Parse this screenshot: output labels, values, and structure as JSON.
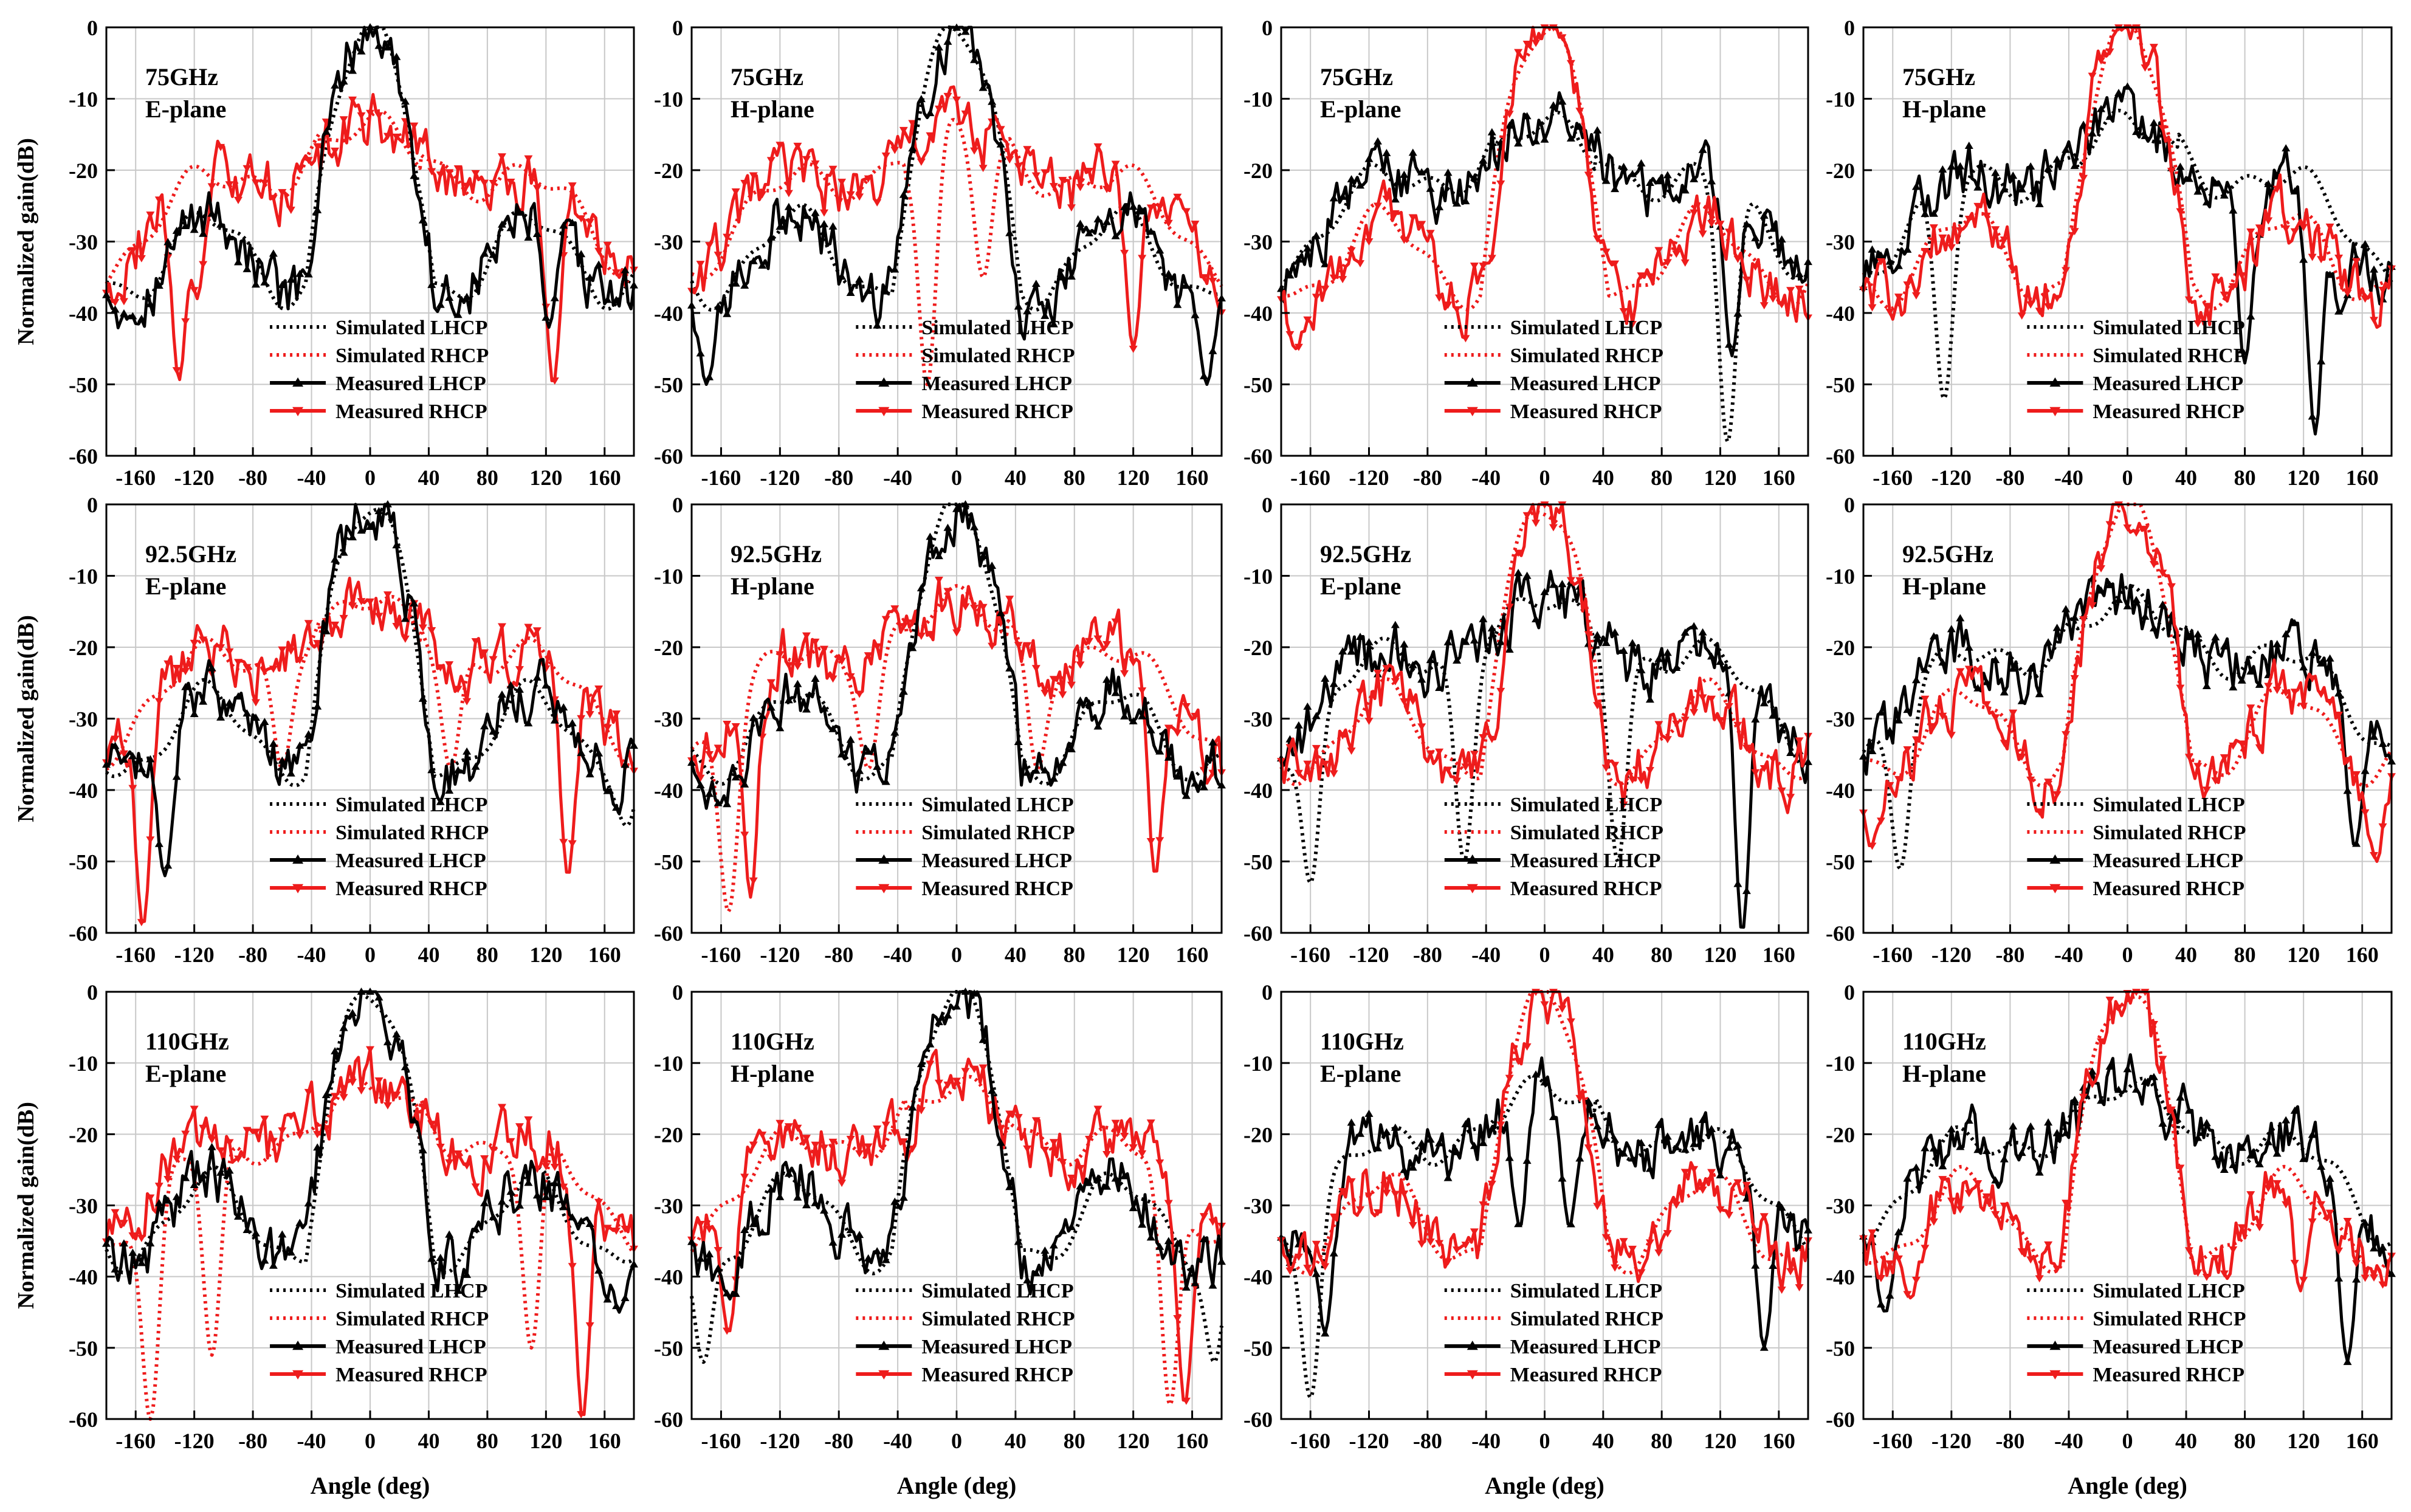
{
  "figure": {
    "ylabel": "Normalized gain(dB)",
    "xlabel": "Angle (deg)"
  },
  "legend_labels": [
    "Simulated  LHCP",
    "Simulated  RHCP",
    "Measured  LHCP",
    "Measured  RHCP"
  ],
  "colors": {
    "lhcp": "#000000",
    "rhcp": "#ee1c1c",
    "grid": "#c8c8c8",
    "axis": "#000000"
  },
  "chart_data": [
    {
      "type": "line",
      "freq": "75GHz",
      "plane": "E-plane",
      "main": "lhcp",
      "xlim": [
        -180,
        180
      ],
      "ylim": [
        -60,
        0
      ],
      "xticks": [
        -160,
        -120,
        -80,
        -40,
        0,
        40,
        80,
        120,
        160
      ],
      "yticks": [
        0,
        -10,
        -20,
        -30,
        -40,
        -50,
        -60
      ],
      "side_level": -15,
      "nulls": [
        {
          "a": -130,
          "d": -50,
          "s": "rhcp"
        },
        {
          "a": -118,
          "d": -38,
          "s": "rhcp"
        },
        {
          "a": 122,
          "d": -42,
          "s": "lhcp"
        },
        {
          "a": 125,
          "d": -50,
          "s": "rhcp"
        }
      ],
      "series": [
        {
          "name": "Simulated  LHCP"
        },
        {
          "name": "Simulated  RHCP"
        },
        {
          "name": "Measured  LHCP"
        },
        {
          "name": "Measured  RHCP"
        }
      ]
    },
    {
      "type": "line",
      "freq": "75GHz",
      "plane": "H-plane",
      "main": "lhcp",
      "xlim": [
        -180,
        180
      ],
      "ylim": [
        -60,
        0
      ],
      "xticks": [
        -160,
        -120,
        -80,
        -40,
        0,
        40,
        80,
        120,
        160
      ],
      "yticks": [
        0,
        -10,
        -20,
        -30,
        -40,
        -50,
        -60
      ],
      "side_level": -17,
      "nulls": [
        {
          "a": -170,
          "d": -50,
          "s": "lhcp"
        },
        {
          "a": -20,
          "d": -50,
          "s": "rhcp_sim"
        },
        {
          "a": 18,
          "d": -35,
          "s": "rhcp_sim"
        },
        {
          "a": 120,
          "d": -45,
          "s": "rhcp"
        },
        {
          "a": 170,
          "d": -50,
          "s": "lhcp"
        }
      ],
      "series": [
        {
          "name": "Simulated  LHCP"
        },
        {
          "name": "Simulated  RHCP"
        },
        {
          "name": "Measured  LHCP"
        },
        {
          "name": "Measured  RHCP"
        }
      ]
    },
    {
      "type": "line",
      "freq": "75GHz",
      "plane": "E-plane",
      "main": "rhcp",
      "xlim": [
        -180,
        180
      ],
      "ylim": [
        -60,
        0
      ],
      "xticks": [
        -160,
        -120,
        -80,
        -40,
        0,
        40,
        80,
        120,
        160
      ],
      "yticks": [
        0,
        -10,
        -20,
        -30,
        -40,
        -50,
        -60
      ],
      "side_level": -14,
      "nulls": [
        {
          "a": -170,
          "d": -45,
          "s": "rhcp"
        },
        {
          "a": -38,
          "d": -33,
          "s": "rhcp"
        },
        {
          "a": 38,
          "d": -30,
          "s": "rhcp"
        },
        {
          "a": 125,
          "d": -58,
          "s": "lhcp_sim"
        },
        {
          "a": 128,
          "d": -46,
          "s": "lhcp"
        }
      ],
      "series": [
        {
          "name": "Simulated  LHCP"
        },
        {
          "name": "Simulated  RHCP"
        },
        {
          "name": "Measured  LHCP"
        },
        {
          "name": "Measured  RHCP"
        }
      ]
    },
    {
      "type": "line",
      "freq": "75GHz",
      "plane": "H-plane",
      "main": "rhcp",
      "xlim": [
        -180,
        180
      ],
      "ylim": [
        -60,
        0
      ],
      "xticks": [
        -160,
        -120,
        -80,
        -40,
        0,
        40,
        80,
        120,
        160
      ],
      "yticks": [
        0,
        -10,
        -20,
        -30,
        -40,
        -50,
        -60
      ],
      "side_level": -14,
      "nulls": [
        {
          "a": -125,
          "d": -52,
          "s": "lhcp_sim"
        },
        {
          "a": 80,
          "d": -47,
          "s": "lhcp"
        },
        {
          "a": 128,
          "d": -57,
          "s": "lhcp"
        },
        {
          "a": 145,
          "d": -40,
          "s": "lhcp"
        }
      ],
      "series": [
        {
          "name": "Simulated  LHCP"
        },
        {
          "name": "Simulated  RHCP"
        },
        {
          "name": "Measured  LHCP"
        },
        {
          "name": "Measured  RHCP"
        }
      ]
    },
    {
      "type": "line",
      "freq": "92.5GHz",
      "plane": "E-plane",
      "main": "lhcp",
      "xlim": [
        -180,
        180
      ],
      "ylim": [
        -60,
        0
      ],
      "xticks": [
        -160,
        -120,
        -80,
        -40,
        0,
        40,
        80,
        120,
        160
      ],
      "yticks": [
        0,
        -10,
        -20,
        -30,
        -40,
        -50,
        -60
      ],
      "side_level": -16,
      "nulls": [
        {
          "a": -155,
          "d": -59,
          "s": "rhcp"
        },
        {
          "a": -140,
          "d": -52,
          "s": "lhcp"
        },
        {
          "a": -60,
          "d": -37,
          "s": "rhcp_sim"
        },
        {
          "a": 55,
          "d": -37,
          "s": "rhcp_sim"
        },
        {
          "a": 135,
          "d": -52,
          "s": "rhcp"
        },
        {
          "a": 175,
          "d": -45,
          "s": "lhcp_sim"
        }
      ],
      "series": [
        {
          "name": "Simulated  LHCP"
        },
        {
          "name": "Simulated  RHCP"
        },
        {
          "name": "Measured  LHCP"
        },
        {
          "name": "Measured  RHCP"
        }
      ]
    },
    {
      "type": "line",
      "freq": "92.5GHz",
      "plane": "H-plane",
      "main": "lhcp",
      "xlim": [
        -180,
        180
      ],
      "ylim": [
        -60,
        0
      ],
      "xticks": [
        -160,
        -120,
        -80,
        -40,
        0,
        40,
        80,
        120,
        160
      ],
      "yticks": [
        0,
        -10,
        -20,
        -30,
        -40,
        -50,
        -60
      ],
      "side_level": -16,
      "nulls": [
        {
          "a": -155,
          "d": -57,
          "s": "rhcp_sim"
        },
        {
          "a": -140,
          "d": -55,
          "s": "rhcp"
        },
        {
          "a": -60,
          "d": -37,
          "s": "rhcp_sim"
        },
        {
          "a": 55,
          "d": -37,
          "s": "rhcp_sim"
        },
        {
          "a": 135,
          "d": -52,
          "s": "rhcp"
        }
      ],
      "series": [
        {
          "name": "Simulated  LHCP"
        },
        {
          "name": "Simulated  RHCP"
        },
        {
          "name": "Measured  LHCP"
        },
        {
          "name": "Measured  RHCP"
        }
      ]
    },
    {
      "type": "line",
      "freq": "92.5GHz",
      "plane": "E-plane",
      "main": "rhcp",
      "xlim": [
        -180,
        180
      ],
      "ylim": [
        -60,
        0
      ],
      "xticks": [
        -160,
        -120,
        -80,
        -40,
        0,
        40,
        80,
        120,
        160
      ],
      "yticks": [
        0,
        -10,
        -20,
        -30,
        -40,
        -50,
        -60
      ],
      "side_level": -16,
      "nulls": [
        {
          "a": -160,
          "d": -53,
          "s": "lhcp_sim"
        },
        {
          "a": -55,
          "d": -50,
          "s": "lhcp_sim"
        },
        {
          "a": -35,
          "d": -33,
          "s": "rhcp"
        },
        {
          "a": 50,
          "d": -50,
          "s": "lhcp_sim"
        },
        {
          "a": 135,
          "d": -60,
          "s": "lhcp"
        }
      ],
      "series": [
        {
          "name": "Simulated  LHCP"
        },
        {
          "name": "Simulated  RHCP"
        },
        {
          "name": "Measured  LHCP"
        },
        {
          "name": "Measured  RHCP"
        }
      ]
    },
    {
      "type": "line",
      "freq": "92.5GHz",
      "plane": "H-plane",
      "main": "rhcp",
      "xlim": [
        -180,
        180
      ],
      "ylim": [
        -60,
        0
      ],
      "xticks": [
        -160,
        -120,
        -80,
        -40,
        0,
        40,
        80,
        120,
        160
      ],
      "yticks": [
        0,
        -10,
        -20,
        -30,
        -40,
        -50,
        -60
      ],
      "side_level": -18,
      "nulls": [
        {
          "a": -175,
          "d": -48,
          "s": "rhcp"
        },
        {
          "a": -155,
          "d": -51,
          "s": "lhcp_sim"
        },
        {
          "a": 155,
          "d": -48,
          "s": "lhcp"
        },
        {
          "a": 170,
          "d": -50,
          "s": "rhcp"
        }
      ],
      "series": [
        {
          "name": "Simulated  LHCP"
        },
        {
          "name": "Simulated  RHCP"
        },
        {
          "name": "Measured  LHCP"
        },
        {
          "name": "Measured  RHCP"
        }
      ]
    },
    {
      "type": "line",
      "freq": "110GHz",
      "plane": "E-plane",
      "main": "lhcp",
      "xlim": [
        -180,
        180
      ],
      "ylim": [
        -60,
        0
      ],
      "xticks": [
        -160,
        -120,
        -80,
        -40,
        0,
        40,
        80,
        120,
        160
      ],
      "yticks": [
        0,
        -10,
        -20,
        -30,
        -40,
        -50,
        -60
      ],
      "side_level": -16,
      "nulls": [
        {
          "a": -150,
          "d": -60,
          "s": "rhcp_sim"
        },
        {
          "a": -108,
          "d": -51,
          "s": "rhcp_sim"
        },
        {
          "a": 110,
          "d": -50,
          "s": "rhcp_sim"
        },
        {
          "a": 145,
          "d": -60,
          "s": "rhcp"
        },
        {
          "a": 170,
          "d": -45,
          "s": "lhcp"
        }
      ],
      "series": [
        {
          "name": "Simulated  LHCP"
        },
        {
          "name": "Simulated  RHCP"
        },
        {
          "name": "Measured  LHCP"
        },
        {
          "name": "Measured  RHCP"
        }
      ]
    },
    {
      "type": "line",
      "freq": "110GHz",
      "plane": "H-plane",
      "main": "lhcp",
      "xlim": [
        -180,
        180
      ],
      "ylim": [
        -60,
        0
      ],
      "xticks": [
        -160,
        -120,
        -80,
        -40,
        0,
        40,
        80,
        120,
        160
      ],
      "yticks": [
        0,
        -10,
        -20,
        -30,
        -40,
        -50,
        -60
      ],
      "side_level": -16,
      "nulls": [
        {
          "a": -172,
          "d": -52,
          "s": "lhcp_sim"
        },
        {
          "a": -155,
          "d": -48,
          "s": "rhcp"
        },
        {
          "a": 145,
          "d": -58,
          "s": "rhcp_sim"
        },
        {
          "a": 155,
          "d": -58,
          "s": "rhcp"
        },
        {
          "a": 175,
          "d": -52,
          "s": "lhcp_sim"
        }
      ],
      "series": [
        {
          "name": "Simulated  LHCP"
        },
        {
          "name": "Simulated  RHCP"
        },
        {
          "name": "Measured  LHCP"
        },
        {
          "name": "Measured  RHCP"
        }
      ]
    },
    {
      "type": "line",
      "freq": "110GHz",
      "plane": "E-plane",
      "main": "rhcp",
      "xlim": [
        -180,
        180
      ],
      "ylim": [
        -60,
        0
      ],
      "xticks": [
        -160,
        -120,
        -80,
        -40,
        0,
        40,
        80,
        120,
        160
      ],
      "yticks": [
        0,
        -10,
        -20,
        -30,
        -40,
        -50,
        -60
      ],
      "side_level": -15,
      "nulls": [
        {
          "a": -160,
          "d": -57,
          "s": "lhcp_sim"
        },
        {
          "a": -150,
          "d": -48,
          "s": "lhcp"
        },
        {
          "a": -17,
          "d": -33,
          "s": "lhcp"
        },
        {
          "a": 17,
          "d": -33,
          "s": "lhcp"
        },
        {
          "a": 150,
          "d": -50,
          "s": "lhcp"
        }
      ],
      "series": [
        {
          "name": "Simulated  LHCP"
        },
        {
          "name": "Simulated  RHCP"
        },
        {
          "name": "Measured  LHCP"
        },
        {
          "name": "Measured  RHCP"
        }
      ]
    },
    {
      "type": "line",
      "freq": "110GHz",
      "plane": "H-plane",
      "main": "rhcp",
      "xlim": [
        -180,
        180
      ],
      "ylim": [
        -60,
        0
      ],
      "xticks": [
        -160,
        -120,
        -80,
        -40,
        0,
        40,
        80,
        120,
        160
      ],
      "yticks": [
        0,
        -10,
        -20,
        -30,
        -40,
        -50,
        -60
      ],
      "side_level": -15,
      "nulls": [
        {
          "a": -165,
          "d": -45,
          "s": "lhcp"
        },
        {
          "a": -148,
          "d": -43,
          "s": "rhcp"
        },
        {
          "a": 118,
          "d": -42,
          "s": "rhcp"
        },
        {
          "a": 150,
          "d": -52,
          "s": "lhcp"
        }
      ],
      "series": [
        {
          "name": "Simulated  LHCP"
        },
        {
          "name": "Simulated  RHCP"
        },
        {
          "name": "Measured  LHCP"
        },
        {
          "name": "Measured  RHCP"
        }
      ]
    }
  ]
}
